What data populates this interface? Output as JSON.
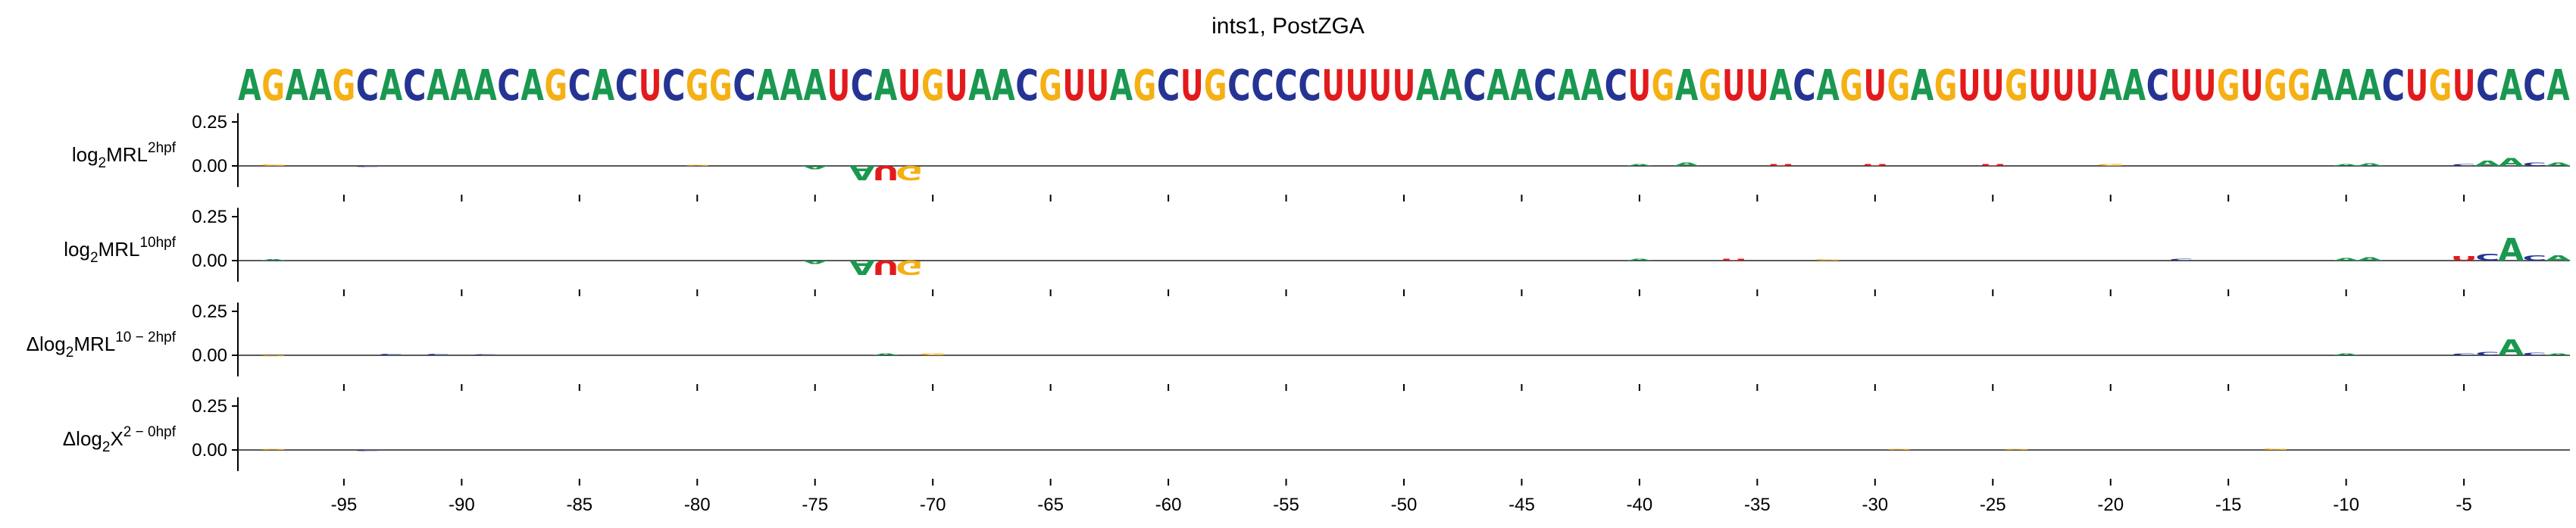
{
  "chart_data": {
    "type": "sequence-logo",
    "title": "ints1, PostZGA",
    "sequence": "AGAAGCACAAACAGCACUCGGCAAAUCAUGUAACGUUAGCUGCCCCUUUUAACAACAACUGAGUUACAGUGAGUUGUUUAACUUGUGGAAACUGUCACA",
    "positions": {
      "start": -99,
      "end": 0
    },
    "colors": {
      "A": "#1a9850",
      "C": "#253494",
      "G": "#f5b014",
      "U": "#e31a1c"
    },
    "xticks": [
      "-95",
      "-90",
      "-85",
      "-80",
      "-75",
      "-70",
      "-65",
      "-60",
      "-55",
      "-50",
      "-45",
      "-40",
      "-35",
      "-30",
      "-25",
      "-20",
      "-15",
      "-10",
      "-5"
    ],
    "yticks": [
      "0.25",
      "0.00"
    ],
    "ylim": [
      -0.12,
      0.3
    ],
    "rows": [
      {
        "label_parts": {
          "prefix": "log",
          "sub": "2",
          "main": "MRL",
          "sup": "2hpf"
        },
        "contributions": [
          {
            "pos": -73,
            "letter": "A",
            "value": -0.08
          },
          {
            "pos": -72,
            "letter": "U",
            "value": -0.08
          },
          {
            "pos": -71,
            "letter": "G",
            "value": -0.08
          },
          {
            "pos": -75,
            "letter": "A",
            "value": -0.02
          },
          {
            "pos": -80,
            "letter": "G",
            "value": 0.006
          },
          {
            "pos": -98,
            "letter": "G",
            "value": 0.008
          },
          {
            "pos": -94,
            "letter": "C",
            "value": -0.006
          },
          {
            "pos": -40,
            "letter": "A",
            "value": 0.012
          },
          {
            "pos": -38,
            "letter": "A",
            "value": 0.018
          },
          {
            "pos": -34,
            "letter": "U",
            "value": 0.012
          },
          {
            "pos": -30,
            "letter": "U",
            "value": 0.012
          },
          {
            "pos": -25,
            "letter": "U",
            "value": 0.01
          },
          {
            "pos": -20,
            "letter": "G",
            "value": 0.01
          },
          {
            "pos": -10,
            "letter": "A",
            "value": 0.01
          },
          {
            "pos": -9,
            "letter": "A",
            "value": 0.015
          },
          {
            "pos": -5,
            "letter": "C",
            "value": 0.012
          },
          {
            "pos": -4,
            "letter": "A",
            "value": 0.03
          },
          {
            "pos": -3,
            "letter": "A",
            "value": 0.045
          },
          {
            "pos": -2,
            "letter": "C",
            "value": 0.02
          },
          {
            "pos": -1,
            "letter": "A",
            "value": 0.02
          }
        ]
      },
      {
        "label_parts": {
          "prefix": "log",
          "sub": "2",
          "main": "MRL",
          "sup": "10hpf"
        },
        "contributions": [
          {
            "pos": -73,
            "letter": "A",
            "value": -0.08
          },
          {
            "pos": -72,
            "letter": "U",
            "value": -0.08
          },
          {
            "pos": -71,
            "letter": "G",
            "value": -0.08
          },
          {
            "pos": -75,
            "letter": "A",
            "value": -0.02
          },
          {
            "pos": -98,
            "letter": "A",
            "value": 0.008
          },
          {
            "pos": -40,
            "letter": "A",
            "value": 0.01
          },
          {
            "pos": -36,
            "letter": "U",
            "value": 0.01
          },
          {
            "pos": -32,
            "letter": "G",
            "value": 0.008
          },
          {
            "pos": -17,
            "letter": "C",
            "value": 0.012
          },
          {
            "pos": -10,
            "letter": "A",
            "value": 0.015
          },
          {
            "pos": -9,
            "letter": "A",
            "value": 0.02
          },
          {
            "pos": -5,
            "letter": "U",
            "value": 0.025
          },
          {
            "pos": -4,
            "letter": "C",
            "value": 0.04
          },
          {
            "pos": -3,
            "letter": "A",
            "value": 0.13
          },
          {
            "pos": -2,
            "letter": "C",
            "value": 0.03
          },
          {
            "pos": -1,
            "letter": "A",
            "value": 0.03
          }
        ]
      },
      {
        "label_parts": {
          "prefix": "Δlog",
          "sub": "2",
          "main": "MRL",
          "sup": "10 − 2hpf"
        },
        "contributions": [
          {
            "pos": -98,
            "letter": "G",
            "value": -0.006
          },
          {
            "pos": -93,
            "letter": "C",
            "value": 0.008
          },
          {
            "pos": -91,
            "letter": "C",
            "value": 0.008
          },
          {
            "pos": -89,
            "letter": "C",
            "value": 0.006
          },
          {
            "pos": -72,
            "letter": "A",
            "value": 0.01
          },
          {
            "pos": -70,
            "letter": "G",
            "value": 0.012
          },
          {
            "pos": -10,
            "letter": "A",
            "value": 0.01
          },
          {
            "pos": -5,
            "letter": "C",
            "value": 0.012
          },
          {
            "pos": -4,
            "letter": "C",
            "value": 0.02
          },
          {
            "pos": -3,
            "letter": "A",
            "value": 0.09
          },
          {
            "pos": -2,
            "letter": "C",
            "value": 0.015
          },
          {
            "pos": -1,
            "letter": "A",
            "value": 0.012
          }
        ]
      },
      {
        "label_parts": {
          "prefix": "Δlog",
          "sub": "2",
          "main": "X",
          "sup": "2 − 0hpf"
        },
        "contributions": [
          {
            "pos": -98,
            "letter": "G",
            "value": 0.006
          },
          {
            "pos": -94,
            "letter": "C",
            "value": -0.006
          },
          {
            "pos": -29,
            "letter": "G",
            "value": 0.006
          },
          {
            "pos": -24,
            "letter": "G",
            "value": 0.006
          },
          {
            "pos": -13,
            "letter": "G",
            "value": 0.008
          }
        ]
      }
    ]
  }
}
